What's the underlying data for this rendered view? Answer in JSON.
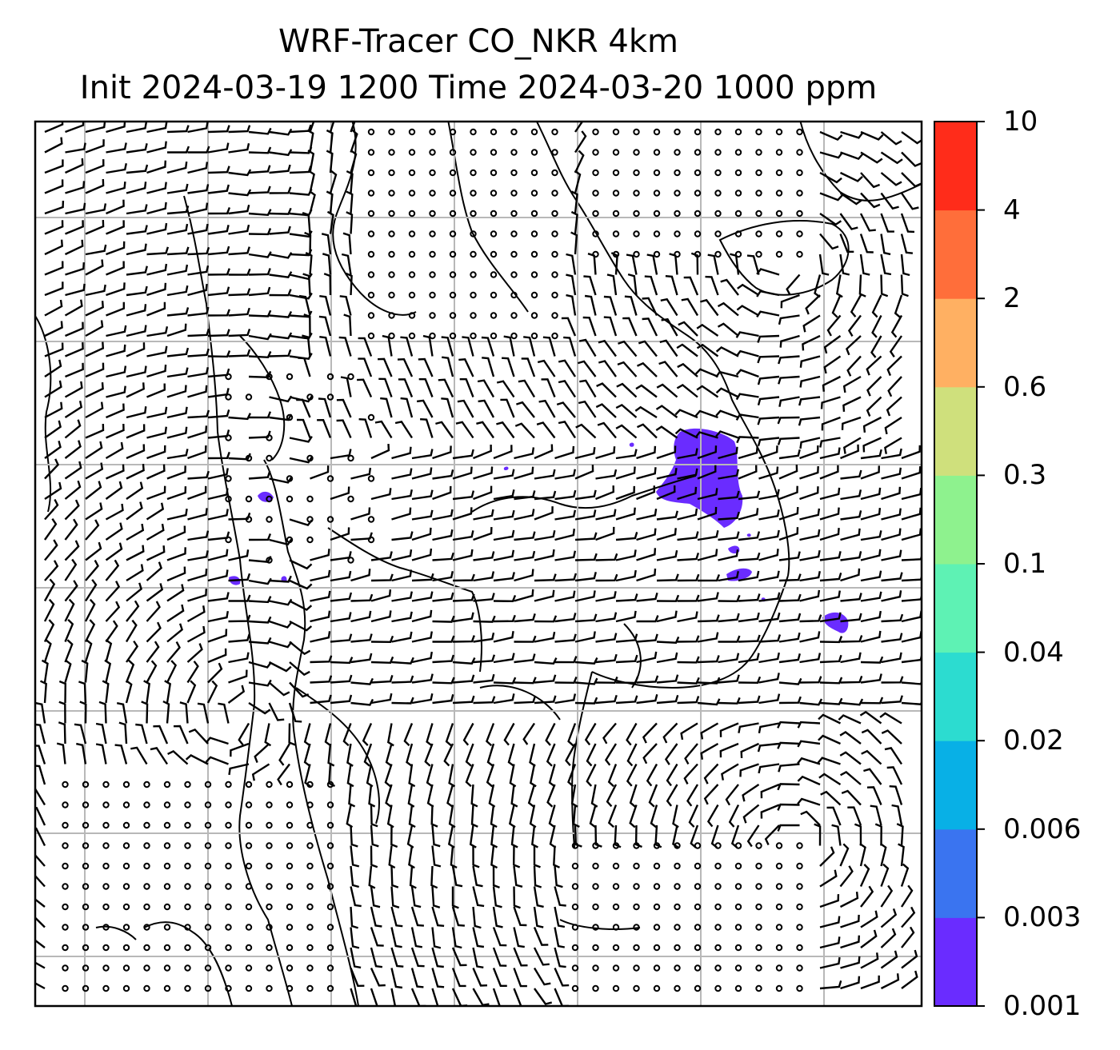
{
  "title": {
    "line1": "WRF-Tracer CO_NKR 4km",
    "line2": "Init 2024-03-19 1200 Time 2024-03-20 1000 ppm"
  },
  "colorbar": {
    "levels": [
      {
        "label": "0.001",
        "color": "#6a2cff"
      },
      {
        "label": "0.003",
        "color": "#3a74f0"
      },
      {
        "label": "0.006",
        "color": "#08b0e6"
      },
      {
        "label": "0.02",
        "color": "#2cdcd0"
      },
      {
        "label": "0.04",
        "color": "#5ef2b4"
      },
      {
        "label": "0.1",
        "color": "#8ef28e"
      },
      {
        "label": "0.3",
        "color": "#cfe07c"
      },
      {
        "label": "0.6",
        "color": "#ffb062"
      },
      {
        "label": "2",
        "color": "#ff6e3a"
      },
      {
        "label": "4",
        "color": "#ff2c1a"
      },
      {
        "label": "10",
        "color": ""
      }
    ]
  },
  "map": {
    "gridlines": true,
    "field": "CO_NKR tracer concentration",
    "overlays": [
      "coastlines",
      "wind-barbs",
      "calm-circles"
    ],
    "plume_color": "#6a2cff"
  }
}
